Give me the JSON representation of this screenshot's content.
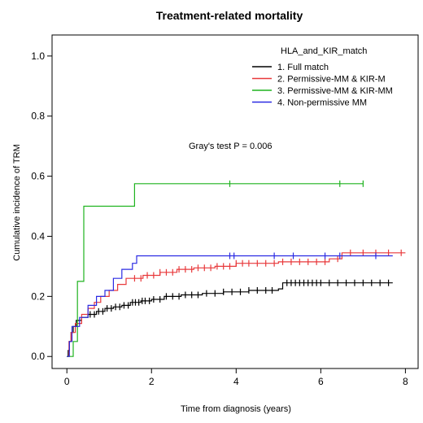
{
  "chart_data": {
    "type": "line",
    "title": "Treatment-related mortality",
    "xlabel": "Time from diagnosis (years)",
    "ylabel": "Cumulative incidence of TRM",
    "xlim": [
      -0.35,
      8.3
    ],
    "ylim": [
      -0.04,
      1.07
    ],
    "x_ticks": [
      0,
      2,
      4,
      6,
      8
    ],
    "y_ticks": [
      0.0,
      0.2,
      0.4,
      0.6,
      0.8,
      1.0
    ],
    "x_tick_labels": [
      "0",
      "2",
      "4",
      "6",
      "8"
    ],
    "y_tick_labels": [
      "0.0",
      "0.2",
      "0.4",
      "0.6",
      "0.8",
      "1.0"
    ],
    "legend_position": "top-right",
    "legend_title": "HLA_and_KIR_match",
    "annotation": "Gray's test P = 0.006",
    "step": true,
    "series": [
      {
        "name": "1. Full match",
        "color": "#000000",
        "points": [
          [
            0,
            0
          ],
          [
            0.03,
            0.02
          ],
          [
            0.06,
            0.05
          ],
          [
            0.1,
            0.08
          ],
          [
            0.15,
            0.1
          ],
          [
            0.22,
            0.12
          ],
          [
            0.35,
            0.13
          ],
          [
            0.5,
            0.14
          ],
          [
            0.7,
            0.15
          ],
          [
            0.9,
            0.16
          ],
          [
            1.1,
            0.165
          ],
          [
            1.3,
            0.17
          ],
          [
            1.5,
            0.18
          ],
          [
            1.75,
            0.185
          ],
          [
            2.0,
            0.19
          ],
          [
            2.3,
            0.2
          ],
          [
            2.7,
            0.205
          ],
          [
            3.2,
            0.21
          ],
          [
            3.7,
            0.215
          ],
          [
            4.3,
            0.22
          ],
          [
            5.0,
            0.225
          ],
          [
            5.1,
            0.245
          ],
          [
            7.7,
            0.245
          ]
        ],
        "censors": [
          0.55,
          0.65,
          0.75,
          0.85,
          0.95,
          1.05,
          1.15,
          1.25,
          1.35,
          1.45,
          1.55,
          1.62,
          1.7,
          1.78,
          1.85,
          1.95,
          2.05,
          2.2,
          2.35,
          2.5,
          2.65,
          2.8,
          2.95,
          3.1,
          3.3,
          3.5,
          3.7,
          3.9,
          4.1,
          4.3,
          4.5,
          4.7,
          4.85,
          5.2,
          5.3,
          5.4,
          5.5,
          5.6,
          5.7,
          5.8,
          5.9,
          6.0,
          6.2,
          6.4,
          6.6,
          6.8,
          7.0,
          7.2,
          7.4,
          7.6
        ]
      },
      {
        "name": "2. Permissive-MM & KIR-M",
        "color": "#e8393b",
        "points": [
          [
            0,
            0
          ],
          [
            0.05,
            0.05
          ],
          [
            0.1,
            0.08
          ],
          [
            0.2,
            0.11
          ],
          [
            0.35,
            0.14
          ],
          [
            0.5,
            0.16
          ],
          [
            0.65,
            0.18
          ],
          [
            0.8,
            0.2
          ],
          [
            1.0,
            0.22
          ],
          [
            1.2,
            0.24
          ],
          [
            1.4,
            0.26
          ],
          [
            1.8,
            0.27
          ],
          [
            2.2,
            0.28
          ],
          [
            2.6,
            0.29
          ],
          [
            3.0,
            0.295
          ],
          [
            3.5,
            0.3
          ],
          [
            4.0,
            0.31
          ],
          [
            5.0,
            0.315
          ],
          [
            6.2,
            0.325
          ],
          [
            6.5,
            0.345
          ],
          [
            8.0,
            0.345
          ]
        ],
        "censors": [
          1.6,
          1.75,
          1.9,
          2.05,
          2.2,
          2.35,
          2.5,
          2.65,
          2.8,
          2.95,
          3.1,
          3.25,
          3.4,
          3.55,
          3.7,
          3.85,
          4.0,
          4.15,
          4.3,
          4.5,
          4.7,
          4.9,
          5.1,
          5.3,
          5.5,
          5.7,
          5.9,
          6.1,
          6.4,
          6.7,
          7.0,
          7.3,
          7.6,
          7.9
        ]
      },
      {
        "name": "3. Permissive-MM & KIR-MM",
        "color": "#1fb31f",
        "points": [
          [
            0,
            0
          ],
          [
            0.15,
            0.05
          ],
          [
            0.25,
            0.25
          ],
          [
            0.4,
            0.5
          ],
          [
            1.55,
            0.5
          ],
          [
            1.6,
            0.575
          ],
          [
            7.0,
            0.575
          ]
        ],
        "censors": [
          3.85,
          6.45,
          7.0
        ]
      },
      {
        "name": "4. Non-permissive MM",
        "color": "#2b2be3",
        "points": [
          [
            0,
            0
          ],
          [
            0.06,
            0.05
          ],
          [
            0.12,
            0.1
          ],
          [
            0.3,
            0.13
          ],
          [
            0.5,
            0.17
          ],
          [
            0.7,
            0.2
          ],
          [
            0.9,
            0.22
          ],
          [
            1.1,
            0.26
          ],
          [
            1.3,
            0.29
          ],
          [
            1.55,
            0.31
          ],
          [
            1.65,
            0.335
          ],
          [
            7.7,
            0.335
          ]
        ],
        "censors": [
          3.85,
          3.95,
          4.9,
          5.35,
          6.1,
          6.45,
          7.3
        ]
      }
    ]
  }
}
